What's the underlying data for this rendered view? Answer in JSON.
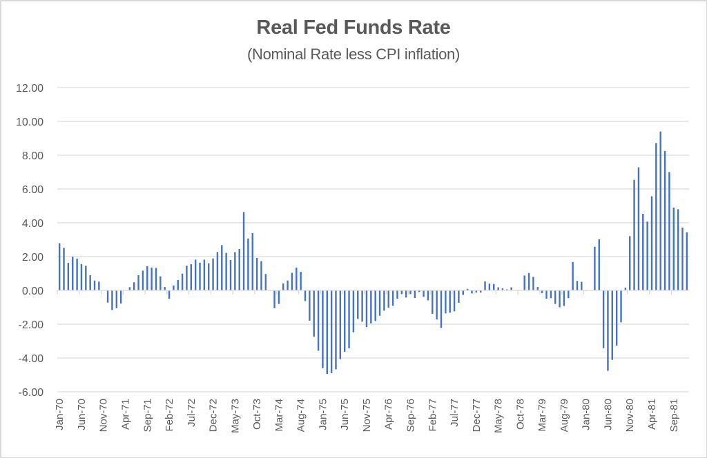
{
  "chart_data": {
    "type": "bar",
    "title": "Real Fed Funds Rate",
    "subtitle": "(Nominal Rate less CPI inflation)",
    "xlabel": "",
    "ylabel": "",
    "ylim": [
      -6,
      12
    ],
    "yticks": [
      12,
      10,
      8,
      6,
      4,
      2,
      0,
      -2,
      -4,
      -6
    ],
    "ytick_labels": [
      "12.00",
      "10.00",
      "8.00",
      "6.00",
      "4.00",
      "2.00",
      "0.00",
      "-2.00",
      "-4.00",
      "-6.00"
    ],
    "grid": true,
    "legend": "none",
    "bar_color": "#4472c4",
    "gridline_color": "#d9d9d9",
    "text_color": "#595959",
    "tick_label_every": 5,
    "xtick_labels": [
      "Jan-70",
      "Jun-70",
      "Nov-70",
      "Apr-71",
      "Sep-71",
      "Feb-72",
      "Jul-72",
      "Dec-72",
      "May-73",
      "Oct-73",
      "Mar-74",
      "Aug-74",
      "Jan-75",
      "Jun-75",
      "Nov-75",
      "Apr-76",
      "Sep-76",
      "Feb-77",
      "Jul-77",
      "Dec-77",
      "May-78",
      "Oct-78",
      "Mar-79",
      "Aug-79",
      "Jan-80",
      "Jun-80",
      "Nov-80",
      "Apr-81",
      "Sep-81"
    ],
    "start_month": "Jan-70",
    "end_month": "Dec-81",
    "values": [
      2.79,
      2.52,
      1.63,
      1.99,
      1.88,
      1.56,
      1.46,
      0.9,
      0.58,
      0.52,
      0.0,
      -0.72,
      -1.16,
      -1.05,
      -0.78,
      0.0,
      0.19,
      0.48,
      0.9,
      1.17,
      1.43,
      1.35,
      1.33,
      0.83,
      0.2,
      -0.5,
      0.29,
      0.61,
      0.99,
      1.46,
      1.55,
      1.82,
      1.64,
      1.82,
      1.6,
      1.89,
      2.27,
      2.68,
      2.22,
      1.8,
      2.26,
      2.45,
      4.64,
      3.07,
      3.39,
      1.92,
      1.73,
      0.97,
      0.03,
      -1.05,
      -0.8,
      0.41,
      0.58,
      1.04,
      1.35,
      1.1,
      -0.63,
      -1.79,
      -2.74,
      -3.57,
      -4.6,
      -4.94,
      -4.9,
      -4.67,
      -4.07,
      -3.63,
      -3.43,
      -2.48,
      -1.69,
      -1.85,
      -2.17,
      -1.95,
      -1.81,
      -1.5,
      -1.2,
      -1.02,
      -0.91,
      -0.49,
      -0.22,
      -0.42,
      -0.22,
      -0.45,
      -0.1,
      -0.38,
      -0.59,
      -1.39,
      -1.72,
      -2.22,
      -1.36,
      -1.32,
      -1.24,
      -0.73,
      -0.27,
      0.09,
      -0.18,
      -0.13,
      -0.13,
      0.53,
      0.4,
      0.38,
      0.18,
      0.12,
      0.06,
      0.18,
      0.0,
      0.0,
      0.88,
      1.03,
      0.8,
      0.2,
      -0.16,
      -0.49,
      -0.46,
      -0.8,
      -1.0,
      -0.92,
      -0.46,
      1.68,
      0.56,
      0.51,
      -0.03,
      -0.02,
      2.58,
      3.02,
      -3.42,
      -4.76,
      -4.11,
      -3.27,
      -1.89,
      0.16,
      3.21,
      6.54,
      7.28,
      4.53,
      4.07,
      5.57,
      8.72,
      9.4,
      8.25,
      7.0,
      4.9,
      4.8,
      3.72,
      3.44
    ]
  }
}
